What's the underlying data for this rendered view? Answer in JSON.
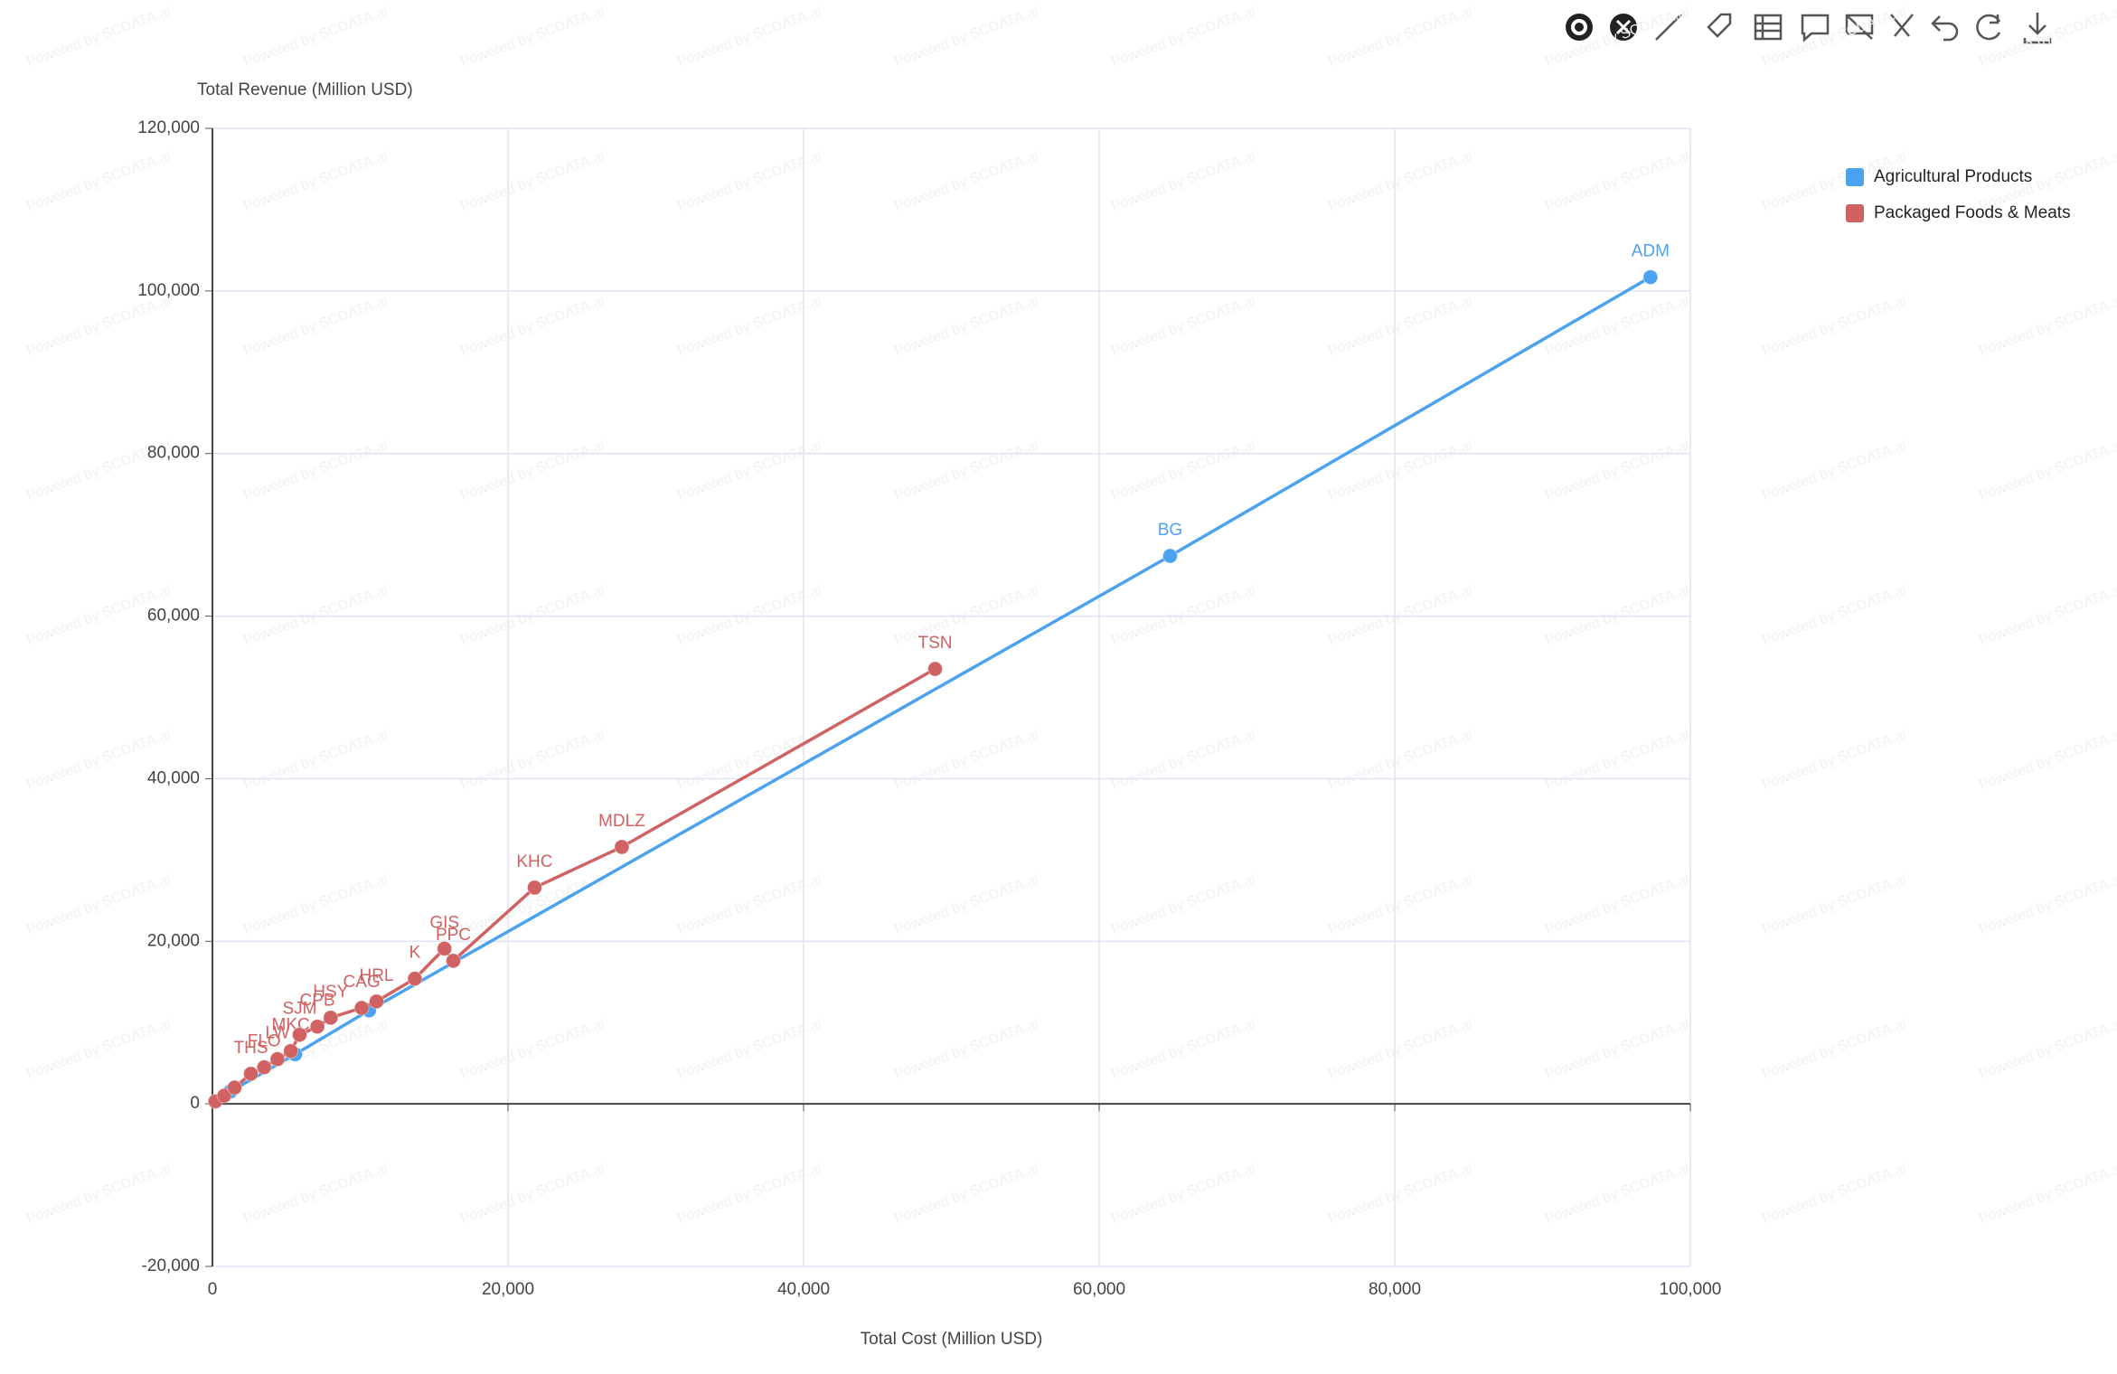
{
  "chart_data": {
    "type": "scatter",
    "x_label": "Total Cost (Million USD)",
    "y_label": "Total Revenue (Million USD)",
    "watermark": "Powered by SCDATA.ai",
    "grid": true,
    "legend": "top-right",
    "xlim": [
      0,
      100000
    ],
    "ylim": [
      -20000,
      120000
    ],
    "xticks": [
      0,
      {
        "value": 20000,
        "label": "20,000"
      },
      {
        "value": 40000,
        "label": "40,000"
      },
      {
        "value": 60000,
        "label": "60,000"
      },
      {
        "value": 80000,
        "label": "80,000"
      },
      {
        "value": 100000,
        "label": "100,000"
      }
    ],
    "yticks": [
      {
        "value": -20000,
        "label": "-20,000"
      },
      0,
      {
        "value": 20000,
        "label": "20,000"
      },
      {
        "value": 40000,
        "label": "40,000"
      },
      {
        "value": 60000,
        "label": "60,000"
      },
      {
        "value": 80000,
        "label": "80,000"
      },
      {
        "value": 100000,
        "label": "100,000"
      },
      {
        "value": 120000,
        "label": "120,000"
      }
    ],
    "series": [
      {
        "name": "Agricultural Products",
        "color": "#4ba3f0",
        "x": [
          1200,
          5600,
          10600,
          64800,
          97300
        ],
        "values": [
          1500,
          6100,
          11500,
          67400,
          101700
        ],
        "labels": [
          null,
          null,
          null,
          "BG",
          "ADM"
        ]
      },
      {
        "name": "Packaged Foods & Meats",
        "color": "#d06262",
        "x": [
          200,
          800,
          1500,
          2600,
          3500,
          4400,
          5300,
          5900,
          7100,
          8000,
          10100,
          11100,
          13700,
          15700,
          16300,
          21800,
          27700,
          48900
        ],
        "values": [
          300,
          1000,
          2000,
          3700,
          4500,
          5500,
          6500,
          8500,
          9500,
          10600,
          11800,
          12600,
          15400,
          19100,
          17600,
          26600,
          31600,
          53500
        ],
        "labels": [
          null,
          null,
          null,
          "THS",
          "FLO",
          "LW",
          "MKC",
          "SJM",
          "CPB",
          "HSY",
          "CAG",
          "HRL",
          "K",
          "GIS",
          "PPC",
          "KHC",
          "MDLZ",
          "TSN"
        ]
      }
    ]
  }
}
